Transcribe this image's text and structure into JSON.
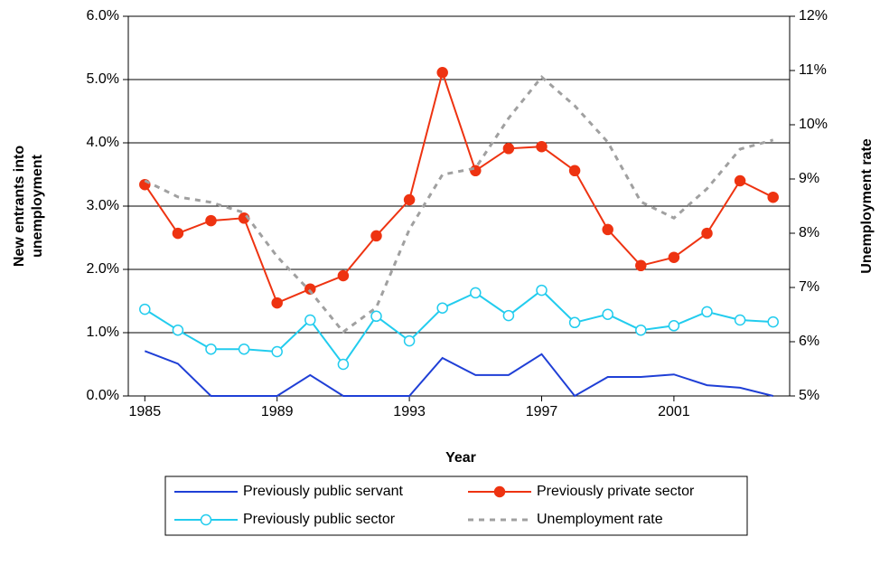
{
  "chart_data": {
    "type": "line",
    "x_label": "Year",
    "y_label": [
      "New entrants into",
      "unemployment"
    ],
    "y2_label": "Unemployment rate",
    "x": [
      1985,
      1986,
      1987,
      1988,
      1989,
      1990,
      1991,
      1992,
      1993,
      1994,
      1995,
      1996,
      1997,
      1998,
      1999,
      2000,
      2001,
      2002,
      2003,
      2004
    ],
    "xlim": [
      1984.5,
      2004.5
    ],
    "xticks": [
      1985,
      1989,
      1993,
      1997,
      2001
    ],
    "ylim": [
      0,
      6
    ],
    "yticks": [
      {
        "value": 0,
        "label": "0.0%"
      },
      {
        "value": 1,
        "label": "1.0%"
      },
      {
        "value": 2,
        "label": "2.0%"
      },
      {
        "value": 3,
        "label": "3.0%"
      },
      {
        "value": 4,
        "label": "4.0%"
      },
      {
        "value": 5,
        "label": "5.0%"
      },
      {
        "value": 6,
        "label": "6.0%"
      }
    ],
    "y2lim": [
      5,
      12
    ],
    "y2ticks": [
      {
        "value": 5,
        "label": "5%"
      },
      {
        "value": 6,
        "label": "6%"
      },
      {
        "value": 7,
        "label": "7%"
      },
      {
        "value": 8,
        "label": "8%"
      },
      {
        "value": 9,
        "label": "9%"
      },
      {
        "value": 10,
        "label": "10%"
      },
      {
        "value": 11,
        "label": "11%"
      },
      {
        "value": 12,
        "label": "12%"
      }
    ],
    "grid": true,
    "legend": "bottom",
    "series": [
      {
        "name": "Previously public servant",
        "color": "#1f3fd6",
        "marker": "none",
        "values": [
          0.71,
          0.51,
          0,
          0,
          0,
          0.33,
          0,
          0,
          0,
          0.6,
          0.33,
          0.33,
          0.66,
          0,
          0.3,
          0.3,
          0.34,
          0.17,
          0.13,
          0
        ]
      },
      {
        "name": "Previously private sector",
        "color": "#ee3311",
        "marker": "filled",
        "values": [
          3.34,
          2.57,
          2.77,
          2.81,
          1.47,
          1.69,
          1.9,
          2.53,
          3.1,
          5.11,
          3.56,
          3.91,
          3.94,
          3.56,
          2.63,
          2.06,
          2.19,
          2.57,
          3.4,
          3.14
        ]
      },
      {
        "name": "Previously public sector",
        "color": "#22ccee",
        "marker": "open",
        "values": [
          1.37,
          1.04,
          0.74,
          0.74,
          0.7,
          1.2,
          0.5,
          1.26,
          0.87,
          1.39,
          1.63,
          1.27,
          1.67,
          1.16,
          1.29,
          1.04,
          1.11,
          1.33,
          1.2,
          1.17
        ]
      },
      {
        "name": "Unemployment rate",
        "color": "#a0a0a0",
        "marker": "none",
        "dash": true,
        "axis": "y2",
        "values": [
          8.97,
          8.67,
          8.57,
          8.38,
          7.57,
          6.93,
          6.18,
          6.63,
          8.07,
          9.08,
          9.2,
          10.12,
          10.88,
          10.35,
          9.68,
          8.58,
          8.28,
          8.82,
          9.55,
          9.72
        ]
      }
    ]
  }
}
